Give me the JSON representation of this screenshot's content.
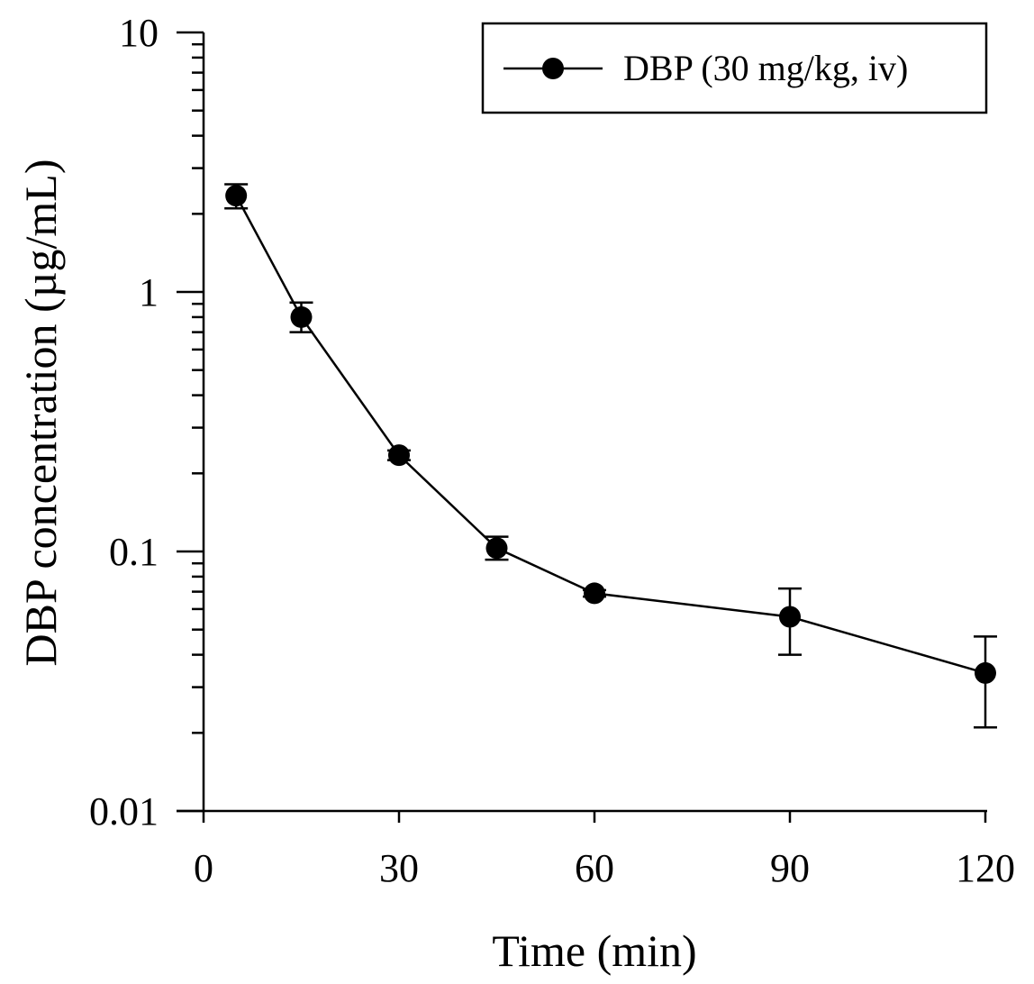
{
  "chart_data": {
    "type": "line",
    "title": "",
    "xlabel": "Time (min)",
    "ylabel": "DBP concentration (µg/mL)",
    "x_scale": "linear",
    "y_scale": "log",
    "xlim": [
      0,
      120
    ],
    "ylim": [
      0.01,
      10
    ],
    "x_ticks": [
      0,
      30,
      60,
      90,
      120
    ],
    "x_tick_labels": [
      "0",
      "30",
      "60",
      "90",
      "120"
    ],
    "y_ticks": [
      0.01,
      0.1,
      1,
      10
    ],
    "y_tick_labels": [
      "0.01",
      "0.1",
      "1",
      "10"
    ],
    "grid": false,
    "legend_position": "top-right",
    "series": [
      {
        "name": "DBP (30 mg/kg, iv)",
        "color": "#000000",
        "marker": "filled-circle",
        "x": [
          5,
          15,
          30,
          45,
          60,
          90,
          120
        ],
        "y": [
          2.35,
          0.8,
          0.235,
          0.103,
          0.069,
          0.056,
          0.034
        ],
        "err_low": [
          2.1,
          0.7,
          0.225,
          0.093,
          0.067,
          0.04,
          0.021
        ],
        "err_high": [
          2.6,
          0.91,
          0.245,
          0.114,
          0.071,
          0.072,
          0.047
        ]
      }
    ]
  }
}
